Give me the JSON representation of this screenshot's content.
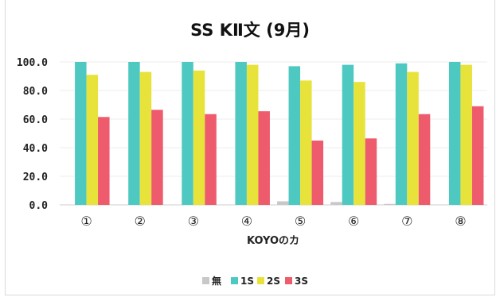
{
  "chart_data": {
    "type": "bar",
    "title": "SS KⅡ文 (9月)",
    "xlabel": "KOYOのカ",
    "ylabel": "",
    "ylim": [
      0,
      100
    ],
    "yticks": [
      "0.0",
      "20.0",
      "40.0",
      "60.0",
      "80.0",
      "100.0"
    ],
    "grid": true,
    "legend_position": "bottom",
    "categories": [
      "①",
      "②",
      "③",
      "④",
      "⑤",
      "⑥",
      "⑦",
      "⑧"
    ],
    "series": [
      {
        "name": "無",
        "color": "#c8c8c8",
        "values": [
          0,
          0,
          0,
          0,
          2.5,
          2,
          0.7,
          0
        ]
      },
      {
        "name": "1S",
        "color": "#4ec9c1",
        "values": [
          100,
          100,
          100,
          100,
          97,
          98,
          99,
          100
        ]
      },
      {
        "name": "2S",
        "color": "#e8e33a",
        "values": [
          91,
          93,
          94,
          98,
          87,
          86,
          93,
          98
        ]
      },
      {
        "name": "3S",
        "color": "#ee5b6d",
        "values": [
          61.5,
          66.5,
          63.5,
          65.5,
          45,
          46.5,
          63.5,
          69
        ]
      }
    ]
  }
}
